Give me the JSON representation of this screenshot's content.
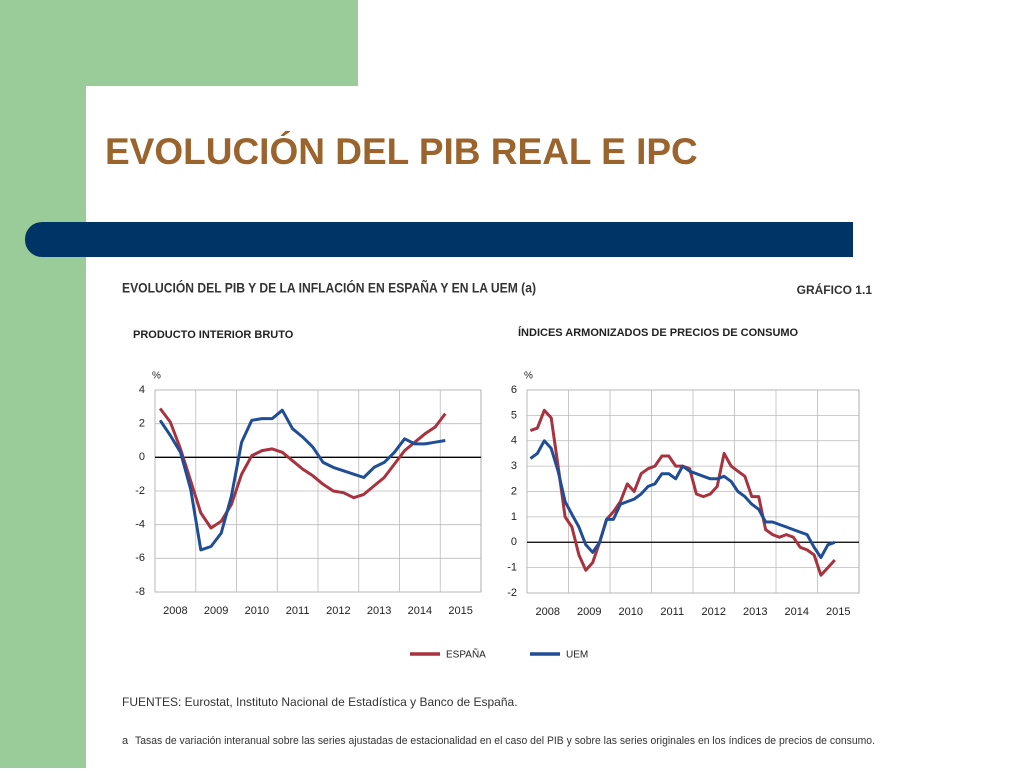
{
  "slide_title": "EVOLUCIÓN DEL PIB REAL E IPC",
  "figure_title": "EVOLUCIÓN DEL PIB Y DE LA INFLACIÓN EN ESPAÑA Y EN LA UEM (a)",
  "figure_label": "GRÁFICO 1.1",
  "legend": [
    {
      "name": "ESPAÑA",
      "color": "#a8323e"
    },
    {
      "name": "UEM",
      "color": "#1f4e96"
    }
  ],
  "sources": "FUENTES: Eurostat, Instituto Nacional de Estadística y Banco de España.",
  "note_marker": "a",
  "note": "Tasas de variación interanual sobre las series ajustadas de estacionalidad en el caso del PIB y sobre las series originales en los índices de precios de consumo.",
  "chart_data": [
    {
      "type": "line",
      "title": "PRODUCTO INTERIOR BRUTO",
      "y_unit": "%",
      "x": [
        2008.125,
        2008.375,
        2008.625,
        2008.875,
        2009.125,
        2009.375,
        2009.625,
        2009.875,
        2010.125,
        2010.375,
        2010.625,
        2010.875,
        2011.125,
        2011.375,
        2011.625,
        2011.875,
        2012.125,
        2012.375,
        2012.625,
        2012.875,
        2013.125,
        2013.375,
        2013.625,
        2013.875,
        2014.125,
        2014.375,
        2014.625,
        2014.875,
        2015.125
      ],
      "series": [
        {
          "color": "#a8323e",
          "values": [
            2.9,
            2.1,
            0.5,
            -1.4,
            -3.3,
            -4.2,
            -3.8,
            -2.8,
            -1.0,
            0.1,
            0.4,
            0.5,
            0.3,
            -0.2,
            -0.7,
            -1.1,
            -1.6,
            -2.0,
            -2.1,
            -2.4,
            -2.2,
            -1.7,
            -1.2,
            -0.4,
            0.4,
            0.9,
            1.4,
            1.8,
            2.6
          ]
        },
        {
          "color": "#1f4e96",
          "values": [
            2.2,
            1.3,
            0.3,
            -1.9,
            -5.5,
            -5.3,
            -4.5,
            -2.3,
            0.9,
            2.2,
            2.3,
            2.3,
            2.8,
            1.7,
            1.2,
            0.6,
            -0.3,
            -0.6,
            -0.8,
            -1.0,
            -1.2,
            -0.6,
            -0.3,
            0.3,
            1.1,
            0.8,
            0.8,
            0.9,
            1.0
          ]
        }
      ],
      "xlim": [
        2008,
        2016
      ],
      "xticks": [
        2008,
        2009,
        2010,
        2011,
        2012,
        2013,
        2014,
        2015
      ],
      "ylim": [
        -8,
        4
      ],
      "yticks": [
        -8,
        -6,
        -4,
        -2,
        0,
        2,
        4
      ],
      "grid": true
    },
    {
      "type": "line",
      "title": "ÍNDICES ARMONIZADOS DE PRECIOS DE CONSUMO",
      "y_unit": "%",
      "x": [
        2008.083,
        2008.25,
        2008.417,
        2008.583,
        2008.75,
        2008.917,
        2009.083,
        2009.25,
        2009.417,
        2009.583,
        2009.75,
        2009.917,
        2010.083,
        2010.25,
        2010.417,
        2010.583,
        2010.75,
        2010.917,
        2011.083,
        2011.25,
        2011.417,
        2011.583,
        2011.75,
        2011.917,
        2012.083,
        2012.25,
        2012.417,
        2012.583,
        2012.75,
        2012.917,
        2013.083,
        2013.25,
        2013.417,
        2013.583,
        2013.75,
        2013.917,
        2014.083,
        2014.25,
        2014.417,
        2014.583,
        2014.75,
        2014.917,
        2015.083,
        2015.25,
        2015.417
      ],
      "series": [
        {
          "color": "#a8323e",
          "values": [
            4.4,
            4.5,
            5.2,
            4.9,
            3.0,
            1.0,
            0.6,
            -0.5,
            -1.1,
            -0.8,
            0.0,
            0.9,
            1.2,
            1.6,
            2.3,
            2.0,
            2.7,
            2.9,
            3.0,
            3.4,
            3.4,
            3.0,
            3.0,
            2.9,
            1.9,
            1.8,
            1.9,
            2.2,
            3.5,
            3.0,
            2.8,
            2.6,
            1.8,
            1.8,
            0.5,
            0.3,
            0.2,
            0.3,
            0.2,
            -0.2,
            -0.3,
            -0.5,
            -1.3,
            -1.0,
            -0.7
          ]
        },
        {
          "color": "#1f4e96",
          "values": [
            3.3,
            3.5,
            4.0,
            3.7,
            2.8,
            1.6,
            1.1,
            0.6,
            -0.1,
            -0.4,
            0.0,
            0.9,
            0.9,
            1.5,
            1.6,
            1.7,
            1.9,
            2.2,
            2.3,
            2.7,
            2.7,
            2.5,
            3.0,
            2.8,
            2.7,
            2.6,
            2.5,
            2.5,
            2.6,
            2.4,
            2.0,
            1.8,
            1.5,
            1.3,
            0.8,
            0.8,
            0.7,
            0.6,
            0.5,
            0.4,
            0.3,
            -0.2,
            -0.6,
            -0.1,
            0.0
          ]
        }
      ],
      "xlim": [
        2008,
        2016
      ],
      "xticks": [
        2008,
        2009,
        2010,
        2011,
        2012,
        2013,
        2014,
        2015
      ],
      "ylim": [
        -2,
        6
      ],
      "yticks": [
        -2,
        -1,
        0,
        1,
        2,
        3,
        4,
        5,
        6
      ],
      "grid": true
    }
  ]
}
